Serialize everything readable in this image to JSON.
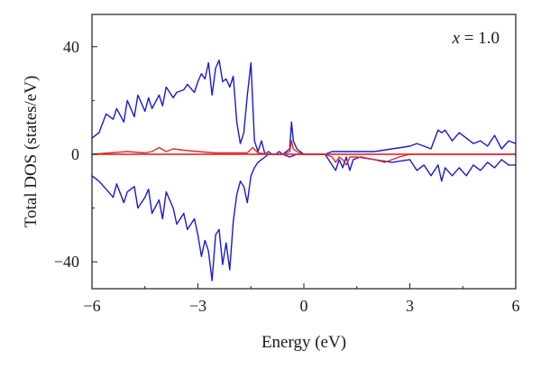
{
  "chart_data": {
    "type": "line",
    "xlabel": "Energy (eV)",
    "ylabel": "Total DOS (states/eV)",
    "annotation": "x = 1.0",
    "xlim": [
      -6,
      6
    ],
    "ylim": [
      -50,
      52
    ],
    "xticks": [
      -6,
      -3,
      0,
      3,
      6
    ],
    "xtick_labels": [
      "−6",
      "−3",
      "0",
      "3",
      "6"
    ],
    "yticks": [
      -40,
      0,
      40
    ],
    "ytick_labels": [
      "−40",
      "0",
      "40"
    ],
    "grid": false,
    "series": [
      {
        "color": "#1a1ad0",
        "x": [
          -6.0,
          -5.8,
          -5.6,
          -5.4,
          -5.3,
          -5.1,
          -5.0,
          -4.8,
          -4.7,
          -4.5,
          -4.4,
          -4.3,
          -4.1,
          -4.0,
          -3.9,
          -3.7,
          -3.6,
          -3.4,
          -3.3,
          -3.1,
          -3.0,
          -2.9,
          -2.8,
          -2.7,
          -2.6,
          -2.5,
          -2.4,
          -2.3,
          -2.2,
          -2.1,
          -2.0,
          -1.9,
          -1.8,
          -1.7,
          -1.6,
          -1.5,
          -1.45,
          -1.4,
          -1.3,
          -1.2,
          -1.1,
          -1.0,
          -0.9,
          -0.8,
          -0.7,
          -0.6,
          -0.5,
          -0.4,
          -0.35,
          -0.3,
          -0.2,
          -0.1,
          0.0,
          0.2,
          0.4,
          0.6,
          0.8,
          1.0,
          1.5,
          2.0,
          2.5,
          3.0,
          3.2,
          3.4,
          3.6,
          3.8,
          3.9,
          4.0,
          4.2,
          4.4,
          4.6,
          4.8,
          5.0,
          5.2,
          5.4,
          5.6,
          5.8,
          6.0
        ],
        "values": [
          6,
          8,
          15,
          13,
          17,
          12,
          20,
          14,
          22,
          16,
          21,
          17,
          22,
          18,
          25,
          21,
          23,
          24,
          26,
          23,
          27,
          30,
          28,
          34,
          22,
          32,
          35,
          27,
          28,
          25,
          29,
          12,
          4,
          8,
          22,
          34,
          20,
          5,
          1,
          5,
          0,
          1,
          0,
          0,
          1,
          0,
          1,
          2,
          12,
          5,
          2,
          1,
          0,
          0,
          0,
          0,
          1,
          1,
          1,
          1,
          2,
          3,
          4,
          3,
          2,
          9,
          8,
          9,
          5,
          8,
          6,
          4,
          5,
          3,
          7,
          2,
          5,
          4
        ]
      },
      {
        "color": "#1a1ad0",
        "x": [
          -6.0,
          -5.8,
          -5.6,
          -5.4,
          -5.3,
          -5.1,
          -5.0,
          -4.8,
          -4.7,
          -4.5,
          -4.4,
          -4.3,
          -4.1,
          -4.0,
          -3.9,
          -3.7,
          -3.6,
          -3.4,
          -3.3,
          -3.1,
          -3.0,
          -2.9,
          -2.8,
          -2.7,
          -2.6,
          -2.5,
          -2.4,
          -2.3,
          -2.2,
          -2.1,
          -2.0,
          -1.9,
          -1.8,
          -1.7,
          -1.6,
          -1.5,
          -1.4,
          -1.3,
          -1.2,
          -1.1,
          -1.0,
          -0.9,
          -0.8,
          -0.6,
          -0.4,
          -0.2,
          0.0,
          0.2,
          0.4,
          0.6,
          0.8,
          0.9,
          1.0,
          1.1,
          1.2,
          1.3,
          1.4,
          1.6,
          2.0,
          2.5,
          3.0,
          3.2,
          3.4,
          3.6,
          3.8,
          3.9,
          4.0,
          4.2,
          4.4,
          4.6,
          4.8,
          5.0,
          5.2,
          5.4,
          5.6,
          5.8,
          6.0
        ],
        "values": [
          -8,
          -10,
          -13,
          -16,
          -11,
          -18,
          -14,
          -12,
          -20,
          -16,
          -13,
          -22,
          -17,
          -24,
          -14,
          -20,
          -26,
          -22,
          -28,
          -24,
          -30,
          -38,
          -32,
          -36,
          -47,
          -30,
          -28,
          -41,
          -33,
          -43,
          -25,
          -15,
          -10,
          -12,
          -18,
          -8,
          -5,
          -3,
          -2,
          -1,
          0,
          0,
          0,
          0,
          -1,
          0,
          0,
          0,
          0,
          0,
          -4,
          -6,
          -2,
          -5,
          -1,
          -6,
          -2,
          -1,
          -2,
          -3,
          -2,
          -6,
          -4,
          -8,
          -4,
          -10,
          -5,
          -8,
          -5,
          -8,
          -4,
          -6,
          -3,
          -5,
          -2,
          -4,
          -4
        ]
      },
      {
        "color": "#e02a2a",
        "x": [
          -6.0,
          -5.0,
          -4.5,
          -4.3,
          -4.1,
          -3.9,
          -3.7,
          -3.4,
          -3.0,
          -2.5,
          -2.0,
          -1.6,
          -1.45,
          -1.3,
          -1.0,
          -0.6,
          -0.4,
          -0.35,
          -0.3,
          -0.2,
          0.0,
          0.5,
          1.0,
          1.5,
          2.0,
          2.5,
          3.0,
          4.0,
          5.0,
          6.0
        ],
        "values": [
          0,
          1,
          0.5,
          1,
          2.5,
          1,
          2,
          1.5,
          1,
          0.5,
          0.5,
          0.5,
          2.5,
          0.5,
          0,
          0,
          1,
          5,
          2,
          1,
          0,
          0,
          0,
          0,
          0,
          0,
          0,
          0,
          0,
          0
        ]
      },
      {
        "color": "#e02a2a",
        "x": [
          -6.0,
          -5.0,
          -4.0,
          -3.0,
          -2.0,
          -1.0,
          0.0,
          0.6,
          0.8,
          0.9,
          1.0,
          1.1,
          1.2,
          1.3,
          1.5,
          2.0,
          2.3,
          2.5,
          2.7,
          3.0,
          4.0,
          5.0,
          6.0
        ],
        "values": [
          0,
          0,
          0,
          0,
          0,
          0,
          0,
          0,
          -1,
          -3,
          -1,
          -2,
          -4,
          -1,
          -1,
          -2,
          -3,
          -2,
          -1,
          0,
          0,
          0,
          0
        ]
      }
    ]
  }
}
